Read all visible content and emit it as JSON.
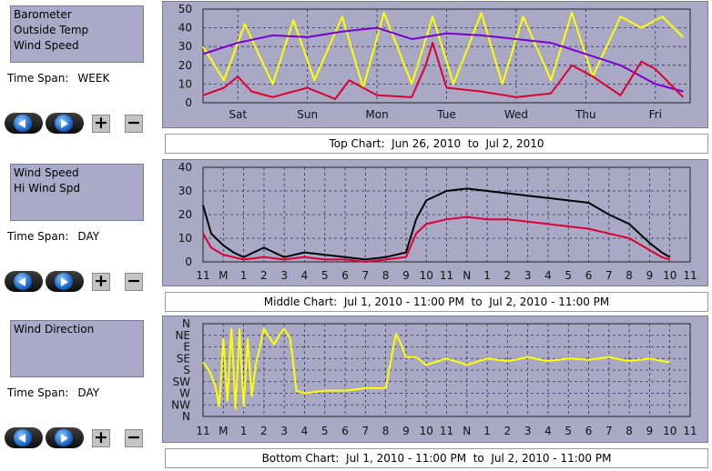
{
  "panels": [
    {
      "series_labels": [
        "Barometer",
        "Outside Temp",
        "Wind Speed"
      ],
      "time_span_label": "Time Span:",
      "time_span_value": "WEEK",
      "caption": "Top Chart:  Jun 26, 2010  to  Jul 2, 2010"
    },
    {
      "series_labels": [
        "Wind Speed",
        "Hi Wind Spd"
      ],
      "time_span_label": "Time Span:",
      "time_span_value": "DAY",
      "caption": "Middle Chart:  Jul 1, 2010 - 11:00 PM  to  Jul 2, 2010 - 11:00 PM"
    },
    {
      "series_labels": [
        "Wind Direction"
      ],
      "time_span_label": "Time Span:",
      "time_span_value": "DAY",
      "caption": "Bottom Chart:  Jul 1, 2010 - 11:00 PM  to  Jul 2, 2010 - 11:00 PM"
    }
  ],
  "controls": {
    "plus_label": "+",
    "minus_label": "−"
  },
  "colors": {
    "yellow": "#ffff00",
    "purple": "#7a00cc",
    "red": "#dd0033",
    "black": "#000000",
    "plot_bg": "#a9a9c6",
    "grid": "#303060"
  },
  "chart_data": [
    {
      "type": "line",
      "x_tick_labels": [
        "Sat",
        "Sun",
        "Mon",
        "Tue",
        "Wed",
        "Thu",
        "Fri"
      ],
      "y_tick_labels": [
        "0",
        "10",
        "20",
        "30",
        "40",
        "50"
      ],
      "ylim": [
        0,
        50
      ],
      "grid": true,
      "series": [
        {
          "color": "#ffff00",
          "x": [
            0,
            0.3,
            0.6,
            1,
            1.3,
            1.6,
            2,
            2.3,
            2.6,
            3,
            3.3,
            3.6,
            4,
            4.3,
            4.6,
            5,
            5.3,
            5.6,
            6,
            6.3,
            6.6,
            6.9
          ],
          "values": [
            30,
            12,
            42,
            10,
            44,
            12,
            46,
            8,
            48,
            10,
            46,
            10,
            48,
            10,
            46,
            12,
            48,
            14,
            46,
            40,
            46,
            35
          ]
        },
        {
          "color": "#7a00cc",
          "x": [
            0,
            0.5,
            1,
            1.5,
            2,
            2.5,
            3,
            3.5,
            4,
            4.5,
            5,
            5.5,
            6,
            6.5,
            6.9
          ],
          "values": [
            26,
            32,
            36,
            35,
            38,
            40,
            34,
            37,
            36,
            34,
            32,
            26,
            20,
            10,
            6
          ]
        },
        {
          "color": "#dd0033",
          "x": [
            0,
            0.3,
            0.5,
            0.7,
            1,
            1.5,
            1.9,
            2.1,
            2.5,
            3,
            3.2,
            3.3,
            3.5,
            4,
            4.5,
            5,
            5.3,
            5.6,
            6,
            6.3,
            6.5,
            6.9
          ],
          "values": [
            4,
            8,
            14,
            6,
            3,
            8,
            2,
            12,
            4,
            3,
            20,
            32,
            8,
            6,
            3,
            5,
            20,
            14,
            4,
            22,
            18,
            3
          ]
        }
      ]
    },
    {
      "type": "line",
      "x_tick_labels": [
        "11",
        "M",
        "1",
        "2",
        "3",
        "4",
        "5",
        "6",
        "7",
        "8",
        "9",
        "10",
        "11",
        "N",
        "1",
        "2",
        "3",
        "4",
        "5",
        "6",
        "7",
        "8",
        "9",
        "10",
        "11"
      ],
      "y_tick_labels": [
        "0",
        "10",
        "20",
        "30",
        "40"
      ],
      "ylim": [
        0,
        40
      ],
      "grid": true,
      "series": [
        {
          "name": "Hi Wind Spd",
          "color": "#000000",
          "x": [
            0,
            0.4,
            1,
            1.5,
            2,
            3,
            4,
            5,
            6,
            7,
            8,
            9,
            10,
            10.5,
            11,
            12,
            13,
            14,
            15,
            16,
            17,
            18,
            19,
            20,
            21,
            22,
            22.6,
            23
          ],
          "values": [
            24,
            12,
            7,
            4,
            2,
            6,
            2,
            4,
            3,
            2,
            1,
            2,
            4,
            18,
            26,
            30,
            31,
            30,
            29,
            28,
            27,
            26,
            25,
            20,
            16,
            8,
            4,
            2
          ]
        },
        {
          "name": "Wind Speed",
          "color": "#dd0033",
          "x": [
            0,
            0.4,
            1,
            1.5,
            2,
            3,
            4,
            5,
            6,
            7,
            8,
            9,
            10,
            10.5,
            11,
            12,
            13,
            14,
            15,
            16,
            17,
            18,
            19,
            20,
            21,
            22,
            22.6,
            23
          ],
          "values": [
            12,
            6,
            3,
            2,
            1,
            2,
            1,
            2,
            1,
            1,
            0,
            1,
            2,
            12,
            16,
            18,
            19,
            18,
            18,
            17,
            16,
            15,
            14,
            12,
            10,
            5,
            2,
            1
          ]
        }
      ]
    },
    {
      "type": "line",
      "x_tick_labels": [
        "11",
        "M",
        "1",
        "2",
        "3",
        "4",
        "5",
        "6",
        "7",
        "8",
        "9",
        "10",
        "11",
        "N",
        "1",
        "2",
        "3",
        "4",
        "5",
        "6",
        "7",
        "8",
        "9",
        "10",
        "11"
      ],
      "y_tick_labels": [
        "N",
        "NW",
        "W",
        "SW",
        "S",
        "SE",
        "E",
        "NE",
        "N"
      ],
      "ylim": [
        0,
        360
      ],
      "grid": true,
      "series": [
        {
          "name": "Wind Direction",
          "color": "#ffff00",
          "x": [
            0,
            0.3,
            0.6,
            0.8,
            1,
            1.2,
            1.4,
            1.6,
            1.8,
            2,
            2.2,
            2.4,
            2.6,
            3,
            3.5,
            3.8,
            4,
            4.3,
            4.6,
            5,
            6,
            7,
            8,
            9,
            9.5,
            9.7,
            10,
            10.5,
            11,
            12,
            13,
            14,
            15,
            16,
            17,
            18,
            19,
            20,
            21,
            22,
            22.6,
            23
          ],
          "values": [
            210,
            180,
            120,
            40,
            300,
            60,
            340,
            30,
            340,
            40,
            300,
            80,
            200,
            340,
            280,
            320,
            340,
            300,
            100,
            90,
            100,
            100,
            110,
            110,
            320,
            290,
            230,
            230,
            200,
            225,
            200,
            225,
            215,
            230,
            215,
            225,
            220,
            230,
            215,
            225,
            215,
            210
          ]
        }
      ]
    }
  ]
}
